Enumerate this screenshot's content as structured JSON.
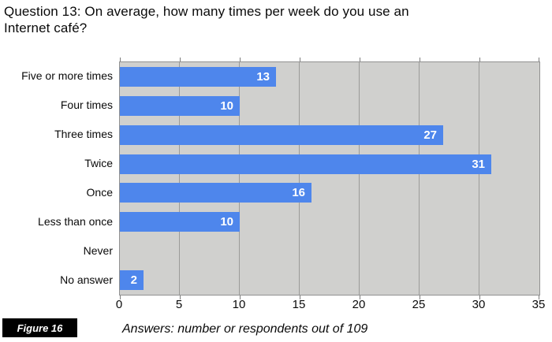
{
  "title_line1": "Question 13: On average, how many times per week do you use an",
  "title_line2": "Internet café?",
  "figure_label": "Figure 16",
  "caption": "Answers: number or respondents out of 109",
  "chart_data": {
    "type": "bar",
    "orientation": "horizontal",
    "title": "Question 13: On average, how many times per week do you use an Internet café?",
    "categories": [
      "Five or more times",
      "Four times",
      "Three times",
      "Twice",
      "Once",
      "Less than once",
      "Never",
      "No answer"
    ],
    "values": [
      13,
      10,
      27,
      31,
      16,
      10,
      0,
      2
    ],
    "value_labels_shown": [
      "13",
      "10",
      "27",
      "31",
      "16",
      "10",
      "",
      "2"
    ],
    "xlim": [
      0,
      35
    ],
    "x_ticks": [
      "0",
      "5",
      "10",
      "15",
      "20",
      "25",
      "30",
      "35"
    ],
    "grid": "vertical gridlines every 5 units",
    "legend": "none",
    "annotation": "Answers: number or respondents out of 109",
    "colors": {
      "bar": "#4e86ec",
      "plot_background": "#d0d0ce",
      "gridline": "#9b9b99",
      "plot_border": "#919191",
      "value_label": "#ffffff",
      "figure_box_background": "#000000",
      "figure_box_text": "#ffffff",
      "text": "#0a0a0a"
    }
  }
}
